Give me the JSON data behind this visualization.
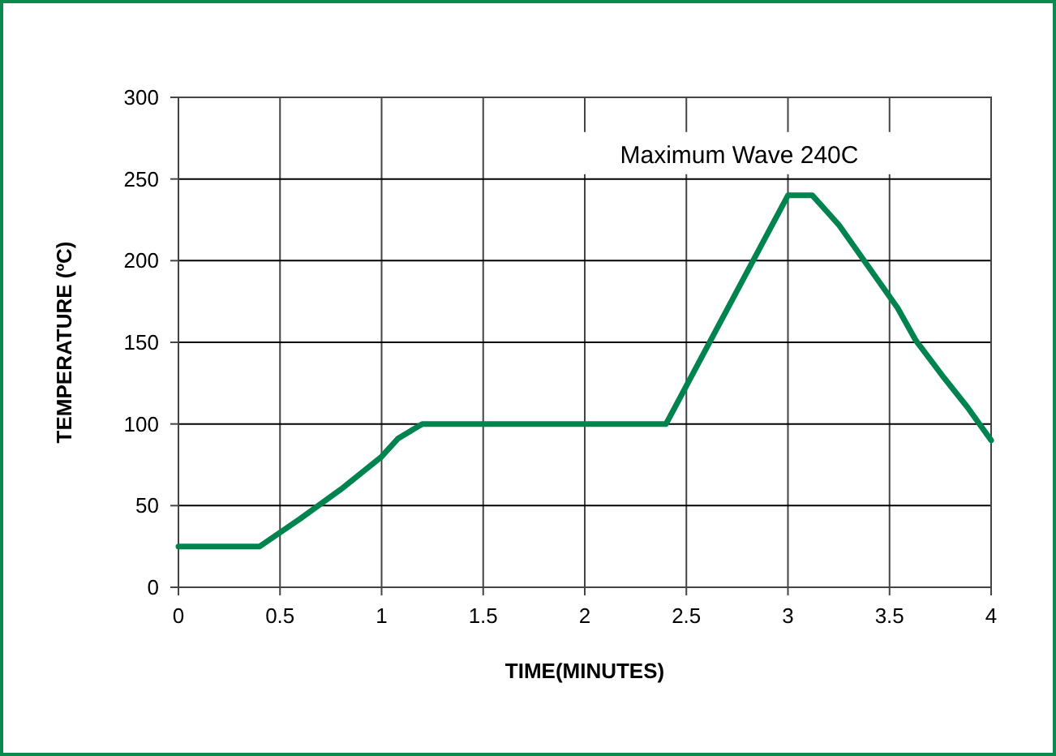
{
  "chart_data": {
    "type": "line",
    "xlabel": "TIME(MINUTES)",
    "ylabel": "TEMPERATURE (ºC)",
    "x": [
      0,
      0.4,
      0.6,
      0.8,
      1.0,
      1.08,
      1.2,
      2.4,
      3.0,
      3.12,
      3.25,
      3.54,
      3.63,
      3.77,
      3.885,
      4.0
    ],
    "series": [
      {
        "color": "#00844f",
        "values": [
          25,
          25,
          42,
          60,
          80,
          91,
          100,
          100,
          240,
          240,
          222,
          171,
          151,
          128,
          110,
          90
        ]
      }
    ],
    "xlim": [
      0,
      4
    ],
    "xticks": [
      0,
      0.5,
      1,
      1.5,
      2,
      2.5,
      3,
      3.5,
      4
    ],
    "ylim": [
      0,
      300
    ],
    "yticks": [
      0,
      50,
      100,
      150,
      200,
      250,
      300
    ],
    "grid": true,
    "marker": "none",
    "line_style": "solid",
    "annotations": [
      {
        "text": "Maximum Wave 240C",
        "x": 3.0,
        "y": 240
      }
    ]
  }
}
